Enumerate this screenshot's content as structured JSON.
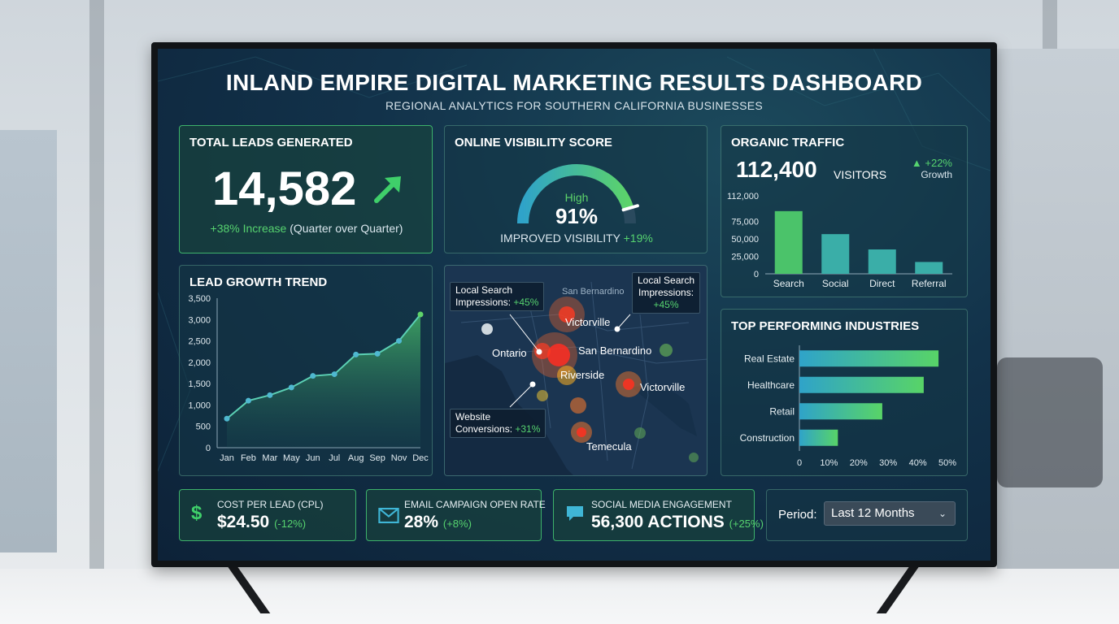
{
  "header": {
    "title": "INLAND EMPIRE DIGITAL MARKETING RESULTS DASHBOARD",
    "subtitle": "REGIONAL ANALYTICS FOR SOUTHERN CALIFORNIA BUSINESSES"
  },
  "leads": {
    "title": "TOTAL LEADS GENERATED",
    "value": "14,582",
    "change": "+38% Increase",
    "period": "(Quarter over Quarter)",
    "icon": "trend-up-arrow-icon"
  },
  "visibility": {
    "title": "ONLINE VISIBILITY SCORE",
    "level": "High",
    "score": "91%",
    "score_fraction": 0.91,
    "footer": "IMPROVED VISIBILITY",
    "change": "+19%"
  },
  "organic": {
    "title": "ORGANIC TRAFFIC",
    "value": "112,400",
    "unit": "VISITORS",
    "change": "▲ +22%",
    "change_label": "Growth"
  },
  "lead_trend": {
    "title": "LEAD GROWTH TREND"
  },
  "map": {
    "cities": [
      "San Bernardino",
      "Victorville",
      "Ontario",
      "San Bernardino",
      "Riverside",
      "Victorville",
      "Temecula"
    ],
    "callout_left": {
      "line1": "Local Search",
      "line2": "Impressions:",
      "change": "+45%"
    },
    "callout_right": {
      "line1": "Local Search",
      "line2": "Impressions:",
      "change": "+45%"
    },
    "callout_bottom": {
      "line1": "Website",
      "line2": "Conversions:",
      "change": "+31%"
    }
  },
  "industries": {
    "title": "TOP PERFORMING INDUSTRIES"
  },
  "kpis": [
    {
      "label": "COST PER LEAD (CPL)",
      "value": "$24.50",
      "change": "(-12%)",
      "icon": "dollar-icon"
    },
    {
      "label": "EMAIL CAMPAIGN OPEN RATE",
      "value": "28%",
      "change": "(+8%)",
      "icon": "envelope-icon"
    },
    {
      "label": "SOCIAL MEDIA ENGAGEMENT",
      "value": "56,300 ACTIONS",
      "change": "(+25%)",
      "icon": "chat-bubble-icon"
    }
  ],
  "period": {
    "label": "Period:",
    "selected": "Last 12 Months"
  },
  "colors": {
    "green": "#56d36f",
    "teal": "#2fa3c9",
    "bg": "#12324a"
  },
  "chart_data": [
    {
      "type": "bar",
      "categories": [
        "Search",
        "Social",
        "Direct",
        "Referral"
      ],
      "values": [
        90000,
        57000,
        35000,
        17000
      ],
      "ylim": [
        0,
        112000
      ],
      "yticks": [
        "112,000",
        "75,000",
        "50,000",
        "25,000",
        "0"
      ],
      "ytick_values": [
        112000,
        75000,
        50000,
        25000,
        0
      ]
    },
    {
      "type": "area",
      "categories": [
        "Jan",
        "Feb",
        "Mar",
        "May",
        "Jun",
        "Jul",
        "Aug",
        "Sep",
        "Nov",
        "Dec"
      ],
      "values": [
        680,
        1100,
        1230,
        1410,
        1680,
        1720,
        2180,
        2200,
        2500,
        3120
      ],
      "ylim": [
        0,
        3500
      ],
      "yticks": [
        "3,500",
        "3,000",
        "2,500",
        "2,000",
        "1,500",
        "1,000",
        "500",
        "0"
      ],
      "ytick_values": [
        3500,
        3000,
        2500,
        2000,
        1500,
        1000,
        500,
        0
      ]
    },
    {
      "type": "bar",
      "orientation": "horizontal",
      "categories": [
        "Real Estate",
        "Healthcare",
        "Retail",
        "Construction"
      ],
      "values": [
        47,
        42,
        28,
        13
      ],
      "xlim": [
        0,
        50
      ],
      "xticks": [
        "0",
        "10%",
        "20%",
        "30%",
        "40%",
        "50%"
      ],
      "xtick_values": [
        0,
        10,
        20,
        30,
        40,
        50
      ]
    }
  ]
}
